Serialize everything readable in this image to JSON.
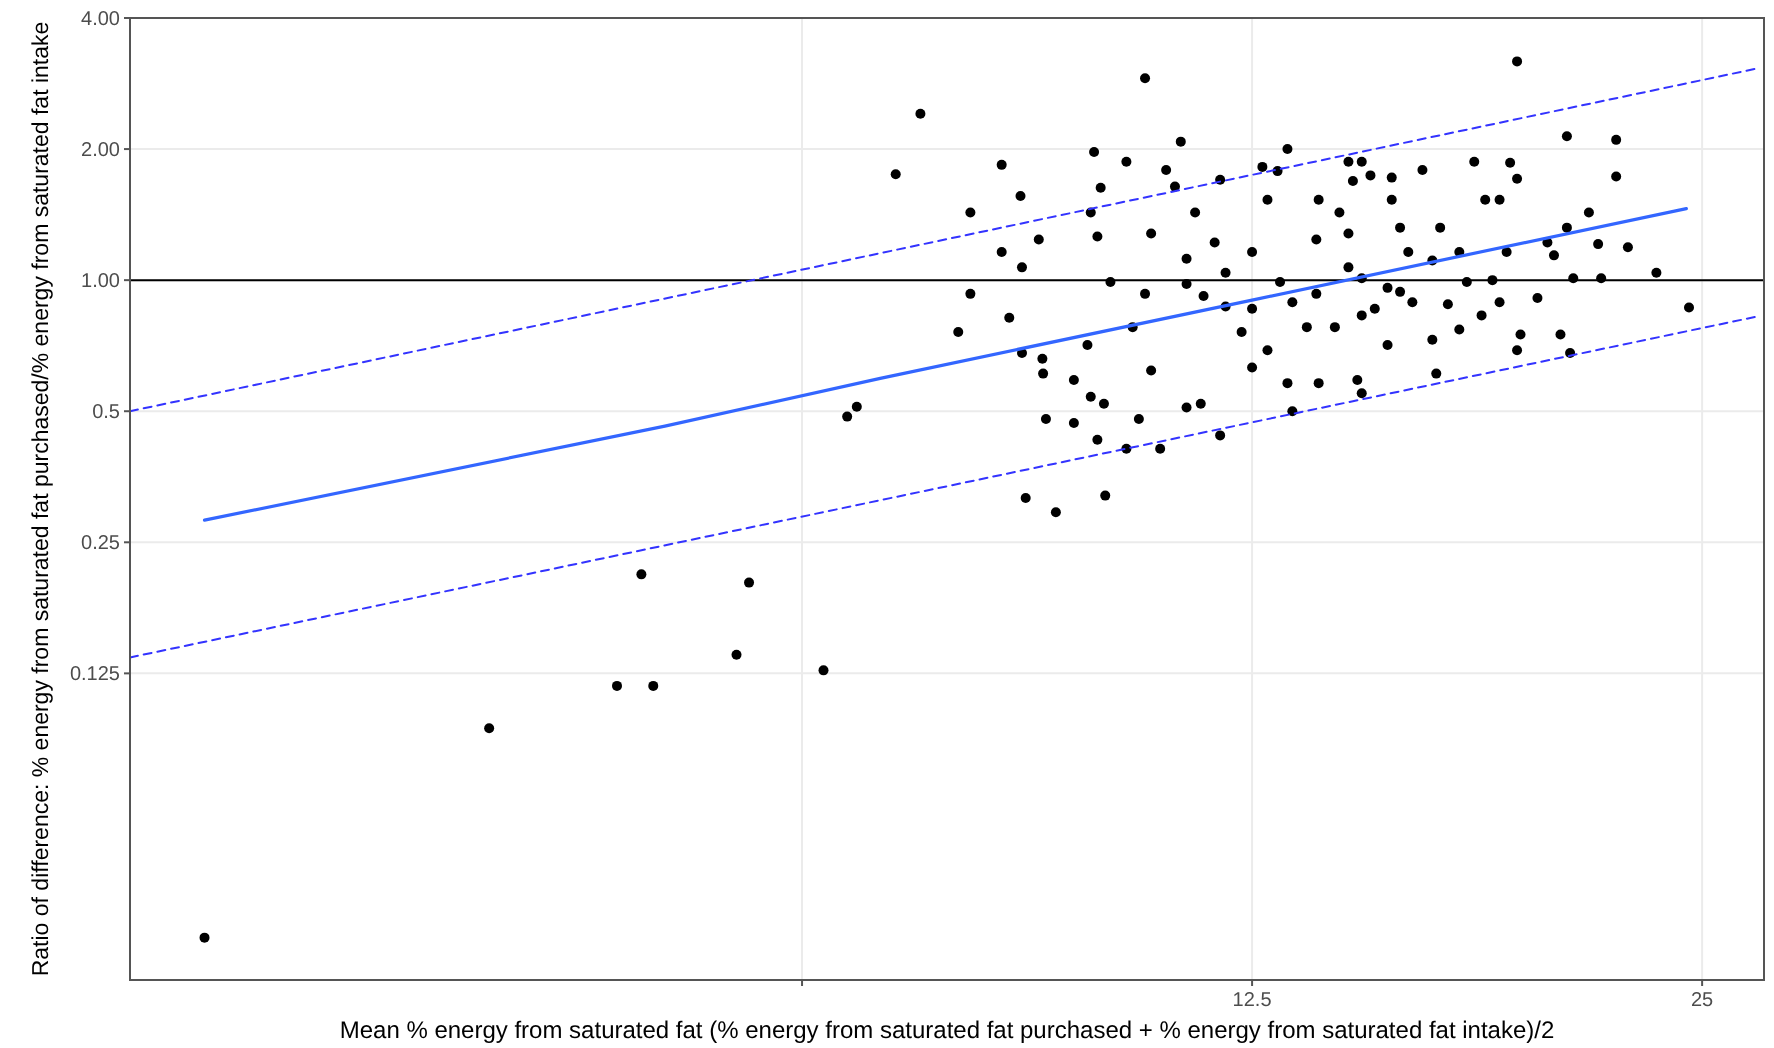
{
  "chart_data": {
    "type": "scatter",
    "xlabel": "Mean % energy from saturated fat (% energy from saturated fat purchased + % energy from saturated fat intake)/2",
    "ylabel": "Ratio of difference: % energy from saturated fat purchased/% energy from saturated fat intake",
    "log": "xy",
    "grid": true,
    "xlim": [
      2.22,
      27.5
    ],
    "ylim": [
      0.0247,
      4
    ],
    "xticks": [
      {
        "value": 6.25,
        "label": null
      },
      12.5,
      25
    ],
    "yticks": [
      {
        "value": 0.125,
        "label": "0.125"
      },
      {
        "value": 0.25,
        "label": "0.25"
      },
      {
        "value": 0.5,
        "label": "0.5"
      },
      {
        "value": 1,
        "label": "1.00"
      },
      {
        "value": 2,
        "label": "2.00"
      },
      {
        "value": 4,
        "label": "4.00"
      }
    ],
    "ref_lines": [
      {
        "axis": "y",
        "value": 1,
        "color": "#000000"
      }
    ],
    "series": [
      {
        "color": "#000000",
        "marker": "circle",
        "x": [
          2.49,
          3.86,
          4.7,
          4.97,
          4.88,
          5.65,
          5.76,
          6.46,
          6.7,
          6.8,
          7.22,
          7.5,
          10.6,
          18.8,
          24.5,
          8.82,
          9.24,
          9.97,
          8.1,
          8.5,
          8.75,
          8.5,
          8.77,
          9.0,
          8.1,
          7.95,
          8.6,
          8.77,
          9.05,
          9.06,
          9.1,
          9.5,
          9.5,
          9.8,
          9.9,
          9.75,
          9.85,
          10.05,
          9.7,
          9.75,
          9.95,
          9.85,
          10.3,
          10.5,
          10.3,
          10.95,
          11.1,
          10.7,
          10.6,
          10.4,
          10.7,
          10.85,
          11.3,
          11.55,
          11.9,
          11.2,
          11.9,
          11.45,
          11.8,
          11.3,
          12.0,
          12.3,
          12.5,
          12.7,
          13.2,
          13.0,
          12.8,
          12.5,
          13.05,
          13.3,
          13.2,
          13.3,
          13.85,
          13.85,
          14.3,
          14.5,
          14.8,
          14.6,
          14.5,
          14.8,
          14.7,
          14.8,
          15.0,
          15.5,
          15.5,
          15.9,
          15.7,
          16.25,
          16.6,
          16.5,
          16.7,
          17.4,
          17.6,
          17.9,
          17.8,
          18.6,
          18.8,
          18.3,
          18.5,
          18.8,
          18.9,
          18.3,
          19.4,
          19.7,
          20.1,
          20.4,
          20.3,
          20.3,
          21.0,
          21.3,
          21.4,
          21.9,
          21.9,
          22.3,
          23.3,
          20.5,
          19.9,
          17.2,
          16.9,
          15.4,
          15.1,
          13.8,
          13.6,
          12.5,
          12.8,
          12.0,
          11.6,
          11.3,
          13.8,
          14.5,
          15.7,
          16.5,
          17.2,
          14.8,
          16.0,
          14.2,
          15.4,
          18.1
        ],
        "values": [
          0.0309,
          0.0935,
          0.117,
          0.117,
          0.211,
          0.138,
          0.202,
          0.127,
          0.486,
          0.512,
          1.75,
          2.41,
          2.91,
          3.18,
          0.865,
          0.316,
          0.293,
          0.32,
          1.43,
          1.84,
          1.56,
          1.16,
          1.07,
          1.24,
          0.93,
          0.76,
          0.82,
          0.68,
          0.66,
          0.61,
          0.48,
          0.47,
          0.59,
          1.97,
          1.63,
          1.43,
          1.26,
          0.99,
          0.71,
          0.54,
          0.52,
          0.43,
          0.41,
          0.48,
          1.87,
          1.79,
          1.64,
          1.28,
          0.93,
          0.78,
          0.62,
          0.41,
          0.51,
          0.52,
          0.44,
          2.08,
          1.7,
          1.43,
          1.22,
          0.98,
          0.87,
          0.76,
          0.63,
          1.82,
          2.0,
          1.78,
          1.53,
          1.16,
          0.99,
          0.89,
          0.58,
          0.5,
          0.58,
          1.53,
          1.43,
          1.87,
          1.87,
          1.69,
          1.07,
          0.83,
          0.59,
          0.55,
          1.74,
          1.72,
          1.53,
          1.16,
          0.94,
          1.79,
          0.61,
          0.73,
          1.32,
          0.99,
          1.87,
          1.53,
          0.83,
          1.86,
          1.71,
          1.53,
          1.16,
          0.69,
          0.75,
          0.89,
          0.91,
          1.22,
          0.75,
          0.68,
          2.14,
          1.32,
          1.43,
          1.21,
          1.01,
          2.1,
          1.73,
          1.19,
          1.04,
          1.01,
          1.14,
          0.77,
          0.88,
          0.96,
          0.86,
          0.93,
          0.78,
          0.86,
          0.69,
          1.04,
          0.92,
          1.12,
          1.24,
          1.28,
          1.32,
          1.11,
          1.16,
          1.01,
          0.89,
          0.78,
          0.71,
          1.0
        ]
      },
      {
        "type": "line",
        "color": "#3366ff",
        "line_style": "solid",
        "x": [
          2.49,
          5.06,
          7.05,
          12.5,
          24.4
        ],
        "values": [
          0.281,
          0.462,
          0.595,
          0.9,
          1.46
        ]
      },
      {
        "type": "line",
        "color": "#3333ff",
        "line_style": "dashed",
        "x": [
          2.22,
          27.3
        ],
        "values": [
          0.5,
          3.07
        ]
      },
      {
        "type": "line",
        "color": "#3333ff",
        "line_style": "dashed",
        "x": [
          2.22,
          27.3
        ],
        "values": [
          0.136,
          0.827
        ]
      }
    ]
  }
}
